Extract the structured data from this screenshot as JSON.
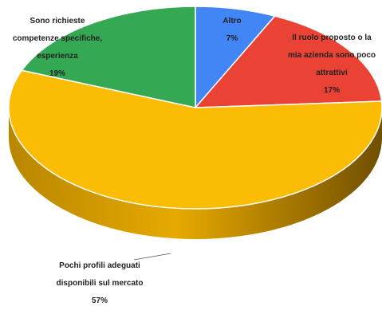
{
  "chart_data": {
    "type": "pie",
    "style": "3d-tilted",
    "slices": [
      {
        "label": "Altro",
        "value": 7,
        "value_label": "7%",
        "color": "#4285F4"
      },
      {
        "label": "Il ruolo proposto o la mia azienda sono poco attrattivi",
        "value": 17,
        "value_label": "17%",
        "color": "#EA4335"
      },
      {
        "label": "Pochi profili adeguati disponibili sul mercato",
        "value": 57,
        "value_label": "57%",
        "color": "#FBBC05"
      },
      {
        "label": "Sono richieste competenze specifiche, esperienza",
        "value": 19,
        "value_label": "19%",
        "color": "#34A853"
      }
    ],
    "label_lines": {
      "Altro": [
        "Altro"
      ],
      "Il ruolo proposto o la mia azienda sono poco attrattivi": [
        "Il ruolo proposto o la",
        "mia azienda sono poco",
        "attrattivi"
      ],
      "Pochi profili adeguati disponibili sul mercato": [
        "Pochi profili adeguati",
        "disponibili sul mercato"
      ],
      "Sono richieste competenze specifiche, esperienza": [
        "Sono richieste",
        "competenze specifiche,",
        "esperienza"
      ]
    },
    "legend": "none"
  }
}
